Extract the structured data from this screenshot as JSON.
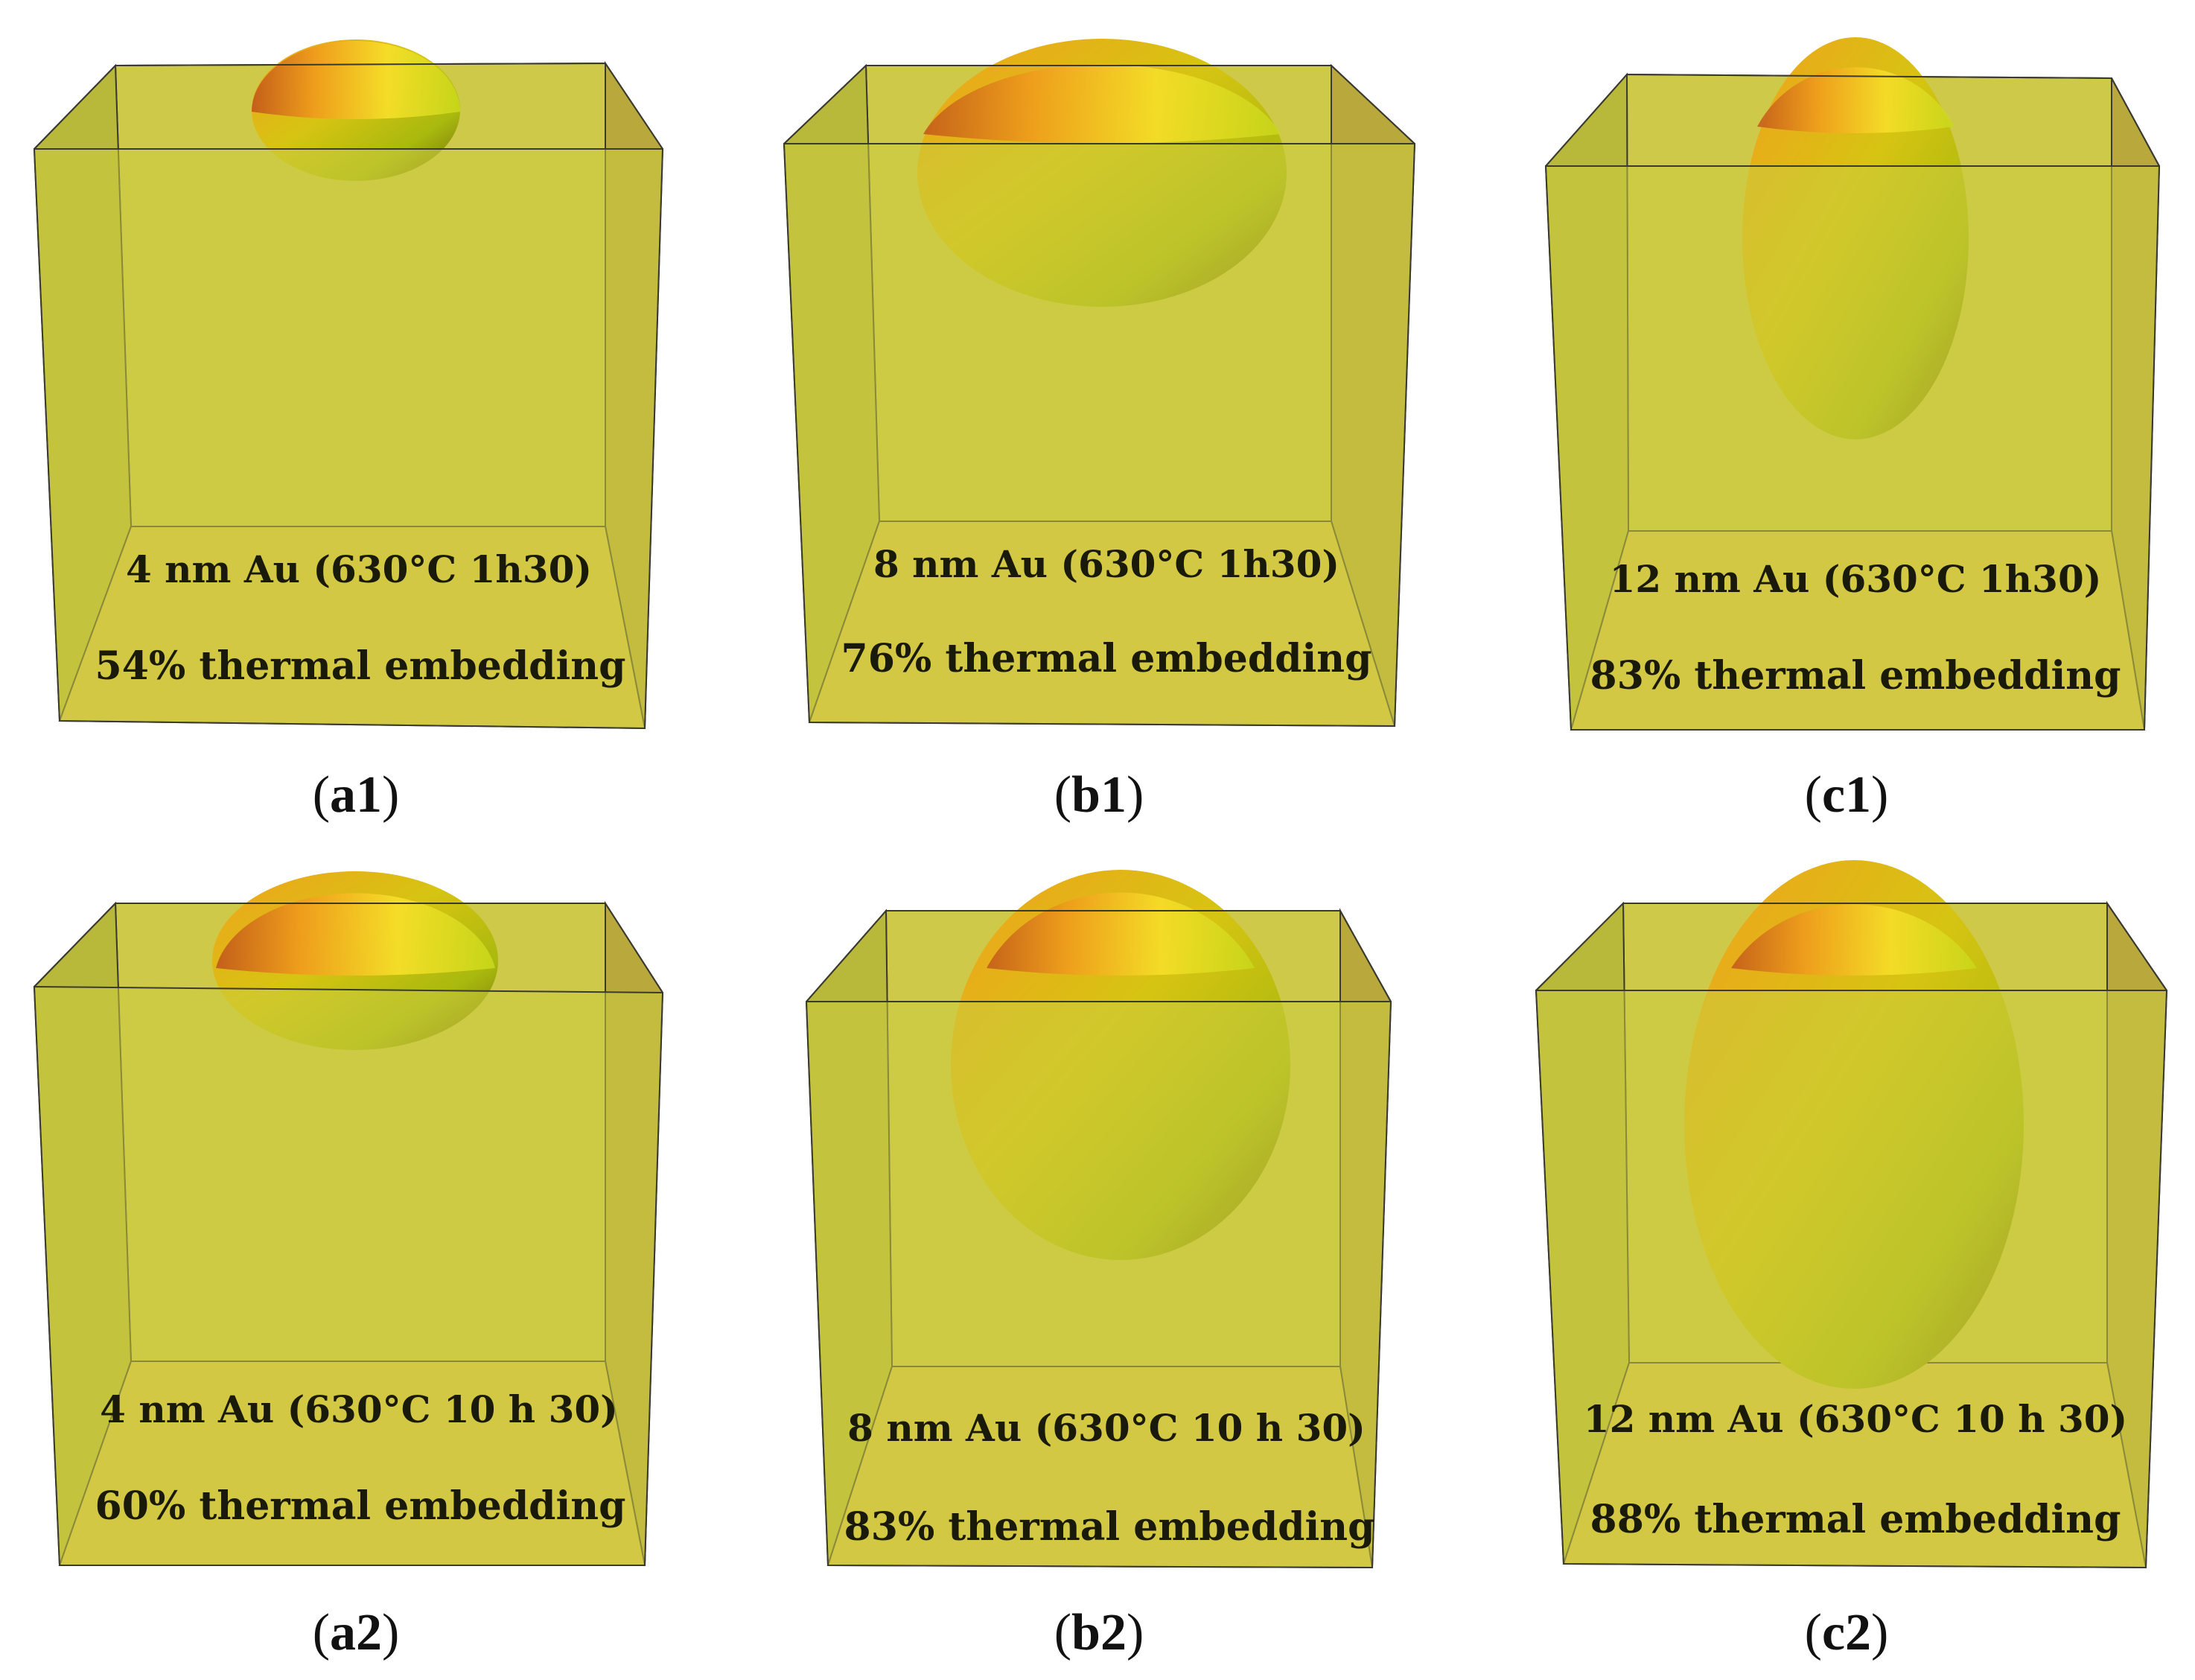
{
  "panels": [
    {
      "id": "a1",
      "caption": "a1",
      "deposit": "4 nm Au (630°C 1h30)",
      "embedding": "54% thermal embedding",
      "embedding_percent": 54,
      "colors": {
        "box": "#cfc94a",
        "particle_top": "#f0b020",
        "particle_side": "#a8c000"
      }
    },
    {
      "id": "b1",
      "caption": "b1",
      "deposit": "8 nm Au (630°C 1h30)",
      "embedding": "76% thermal embedding",
      "embedding_percent": 76,
      "colors": {
        "box": "#cfc94a",
        "particle_top": "#f0b020",
        "particle_side": "#a8c000"
      }
    },
    {
      "id": "c1",
      "caption": "c1",
      "deposit": "12 nm Au (630°C 1h30)",
      "embedding": "83% thermal embedding",
      "embedding_percent": 83,
      "colors": {
        "box": "#cfc94a",
        "particle_top": "#f0b020",
        "particle_side": "#a8c000"
      }
    },
    {
      "id": "a2",
      "caption": "a2",
      "deposit": "4 nm Au (630°C 10 h 30)",
      "embedding": "60% thermal embedding",
      "embedding_percent": 60,
      "colors": {
        "box": "#cfc94a",
        "particle_top": "#f0b020",
        "particle_side": "#a8c000"
      }
    },
    {
      "id": "b2",
      "caption": "b2",
      "deposit": "8 nm Au (630°C 10 h 30)",
      "embedding": "83% thermal embedding",
      "embedding_percent": 83,
      "colors": {
        "box": "#cfc94a",
        "particle_top": "#f0b020",
        "particle_side": "#a8c000"
      }
    },
    {
      "id": "c2",
      "caption": "c2",
      "deposit": "12 nm Au (630°C 10 h 30)",
      "embedding": "88% thermal embedding",
      "embedding_percent": 88,
      "colors": {
        "box": "#cfc94a",
        "particle_top": "#f0b020",
        "particle_side": "#a8c000"
      }
    }
  ]
}
